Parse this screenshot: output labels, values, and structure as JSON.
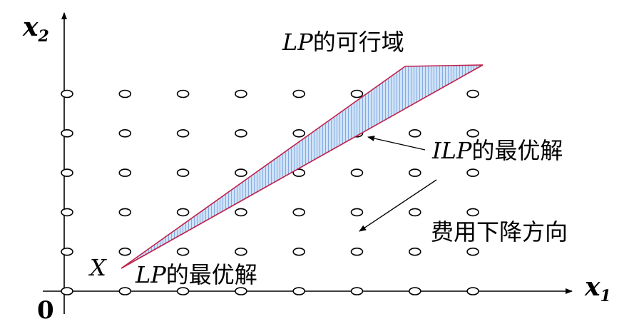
{
  "axes": {
    "y_var": "x",
    "y_sub": "2",
    "x_var": "x",
    "x_sub": "1",
    "origin": "0"
  },
  "labels": {
    "feasible_region": {
      "italic": "LP",
      "text": "的可行域"
    },
    "ilp_optimum": {
      "italic": "ILP",
      "text": "的最优解"
    },
    "cost_direction": {
      "text": "费用下降方向"
    },
    "lp_optimum_point": {
      "italic": "X"
    },
    "lp_optimum": {
      "italic": "LP",
      "text": "的最优解"
    }
  },
  "lattice": {
    "columns": 8,
    "rows": 6
  },
  "colors": {
    "region_fill": "#cfe3f7",
    "region_hatch": "#3a6fd1",
    "region_border": "#c0204a"
  }
}
